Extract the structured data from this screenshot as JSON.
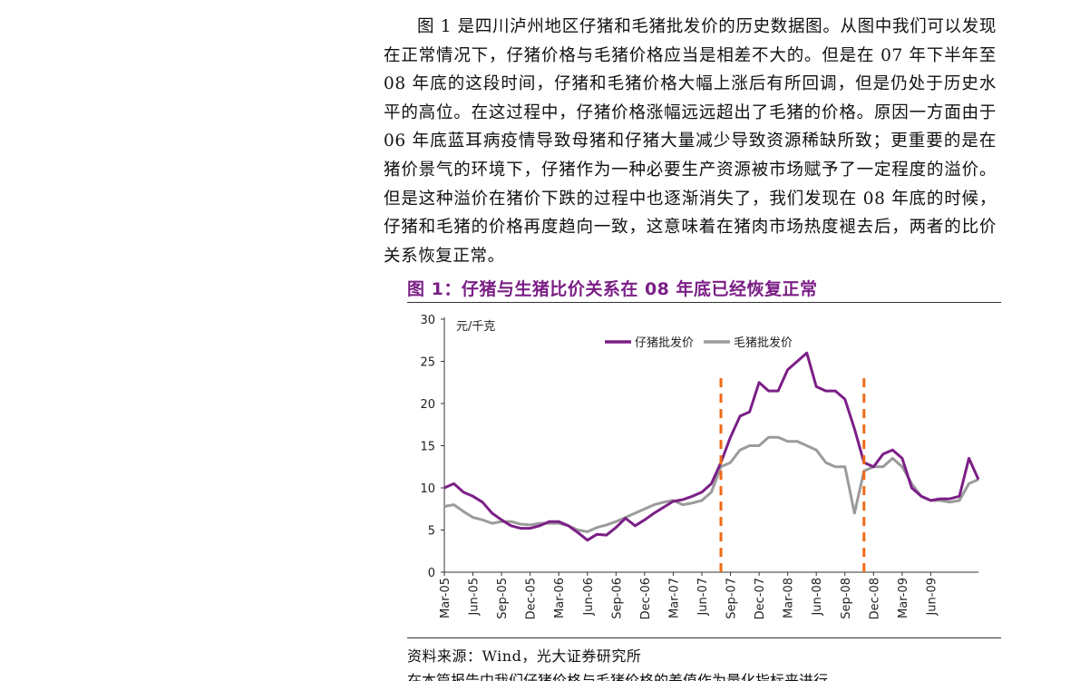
{
  "paragraph": "图 1 是四川泸州地区仔猪和毛猪批发价的历史数据图。从图中我们可以发现在正常情况下，仔猪价格与毛猪价格应当是相差不大的。但是在 07 年下半年至 08 年底的这段时间，仔猪和毛猪价格大幅上涨后有所回调，但是仍处于历史水平的高位。在这过程中，仔猪价格涨幅远远超出了毛猪的价格。原因一方面由于 06 年底蓝耳病疫情导致母猪和仔猪大量减少导致资源稀缺所致；更重要的是在猪价景气的环境下，仔猪作为一种必要生产资源被市场赋予了一定程度的溢价。但是这种溢价在猪价下跌的过程中也逐渐消失了，我们发现在 08 年底的时候，仔猪和毛猪的价格再度趋向一致，这意味着在猪肉市场热度褪去后，两者的比价关系恢复正常。",
  "figure_title": "图 1：仔猪与生猪比价关系在 08 年底已经恢复正常",
  "source": "资料来源：Wind，光大证券研究所",
  "bottom_partial": "在本篇报告中我们仔猪价格与毛猪价格的差值作为量化指标来进行",
  "colors": {
    "piglet": "#7b1f86",
    "hog": "#9b9b9b",
    "marker": "#ee6a16",
    "title": "#7b1f86"
  },
  "chart_data": {
    "type": "line",
    "unit_label": "元/千克",
    "ylim": [
      0,
      30
    ],
    "y_ticks": [
      "0",
      "5",
      "10",
      "15",
      "20",
      "25",
      "30"
    ],
    "x_range": [
      "2005-03",
      "2009-11"
    ],
    "x_ticks": [
      "Mar-05",
      "Jun-05",
      "Sep-05",
      "Dec-05",
      "Mar-06",
      "Jun-06",
      "Sep-06",
      "Dec-06",
      "Mar-07",
      "Jun-07",
      "Sep-07",
      "Dec-07",
      "Mar-08",
      "Jun-08",
      "Sep-08",
      "Dec-08",
      "Mar-09",
      "Jun-09"
    ],
    "legend_position": "top-right",
    "markers": [
      "2007-08",
      "2008-11"
    ],
    "series": [
      {
        "name": "仔猪批发价",
        "points": [
          [
            "2005-03",
            10.0
          ],
          [
            "2005-04",
            10.5
          ],
          [
            "2005-05",
            9.5
          ],
          [
            "2005-06",
            9.0
          ],
          [
            "2005-07",
            8.3
          ],
          [
            "2005-08",
            7.0
          ],
          [
            "2005-09",
            6.2
          ],
          [
            "2005-10",
            5.5
          ],
          [
            "2005-11",
            5.2
          ],
          [
            "2005-12",
            5.2
          ],
          [
            "2006-01",
            5.5
          ],
          [
            "2006-02",
            6.0
          ],
          [
            "2006-03",
            6.0
          ],
          [
            "2006-04",
            5.5
          ],
          [
            "2006-05",
            4.7
          ],
          [
            "2006-06",
            3.8
          ],
          [
            "2006-07",
            4.5
          ],
          [
            "2006-08",
            4.4
          ],
          [
            "2006-09",
            5.3
          ],
          [
            "2006-10",
            6.4
          ],
          [
            "2006-11",
            5.5
          ],
          [
            "2006-12",
            6.2
          ],
          [
            "2007-01",
            7.0
          ],
          [
            "2007-02",
            7.7
          ],
          [
            "2007-03",
            8.4
          ],
          [
            "2007-04",
            8.6
          ],
          [
            "2007-05",
            9.0
          ],
          [
            "2007-06",
            9.5
          ],
          [
            "2007-07",
            10.5
          ],
          [
            "2007-08",
            13.0
          ],
          [
            "2007-09",
            16.0
          ],
          [
            "2007-10",
            18.5
          ],
          [
            "2007-11",
            19.0
          ],
          [
            "2007-12",
            22.5
          ],
          [
            "2008-01",
            21.5
          ],
          [
            "2008-02",
            21.5
          ],
          [
            "2008-03",
            24.0
          ],
          [
            "2008-04",
            25.0
          ],
          [
            "2008-05",
            26.0
          ],
          [
            "2008-06",
            22.0
          ],
          [
            "2008-07",
            21.5
          ],
          [
            "2008-08",
            21.5
          ],
          [
            "2008-09",
            20.5
          ],
          [
            "2008-10",
            17.0
          ],
          [
            "2008-11",
            13.0
          ],
          [
            "2008-12",
            12.5
          ],
          [
            "2009-01",
            14.0
          ],
          [
            "2009-02",
            14.5
          ],
          [
            "2009-03",
            13.5
          ],
          [
            "2009-04",
            10.0
          ],
          [
            "2009-05",
            9.0
          ],
          [
            "2009-06",
            8.5
          ],
          [
            "2009-07",
            8.7
          ],
          [
            "2009-08",
            8.7
          ],
          [
            "2009-09",
            9.0
          ],
          [
            "2009-10",
            13.5
          ],
          [
            "2009-11",
            11.0
          ]
        ]
      },
      {
        "name": "毛猪批发价",
        "points": [
          [
            "2005-03",
            7.8
          ],
          [
            "2005-04",
            8.0
          ],
          [
            "2005-05",
            7.2
          ],
          [
            "2005-06",
            6.5
          ],
          [
            "2005-07",
            6.2
          ],
          [
            "2005-08",
            5.8
          ],
          [
            "2005-09",
            6.0
          ],
          [
            "2005-10",
            6.0
          ],
          [
            "2005-11",
            5.7
          ],
          [
            "2005-12",
            5.6
          ],
          [
            "2006-01",
            5.8
          ],
          [
            "2006-02",
            5.8
          ],
          [
            "2006-03",
            5.8
          ],
          [
            "2006-04",
            5.5
          ],
          [
            "2006-05",
            5.0
          ],
          [
            "2006-06",
            4.8
          ],
          [
            "2006-07",
            5.3
          ],
          [
            "2006-08",
            5.6
          ],
          [
            "2006-09",
            6.0
          ],
          [
            "2006-10",
            6.5
          ],
          [
            "2006-11",
            7.0
          ],
          [
            "2006-12",
            7.5
          ],
          [
            "2007-01",
            8.0
          ],
          [
            "2007-02",
            8.3
          ],
          [
            "2007-03",
            8.5
          ],
          [
            "2007-04",
            8.0
          ],
          [
            "2007-05",
            8.2
          ],
          [
            "2007-06",
            8.5
          ],
          [
            "2007-07",
            9.5
          ],
          [
            "2007-08",
            12.5
          ],
          [
            "2007-09",
            13.0
          ],
          [
            "2007-10",
            14.5
          ],
          [
            "2007-11",
            15.0
          ],
          [
            "2007-12",
            15.0
          ],
          [
            "2008-01",
            16.0
          ],
          [
            "2008-02",
            16.0
          ],
          [
            "2008-03",
            15.5
          ],
          [
            "2008-04",
            15.5
          ],
          [
            "2008-05",
            15.0
          ],
          [
            "2008-06",
            14.5
          ],
          [
            "2008-07",
            13.0
          ],
          [
            "2008-08",
            12.5
          ],
          [
            "2008-09",
            12.5
          ],
          [
            "2008-10",
            7.0
          ],
          [
            "2008-11",
            12.0
          ],
          [
            "2008-12",
            12.5
          ],
          [
            "2009-01",
            12.5
          ],
          [
            "2009-02",
            13.5
          ],
          [
            "2009-03",
            12.5
          ],
          [
            "2009-04",
            10.5
          ],
          [
            "2009-05",
            9.0
          ],
          [
            "2009-06",
            8.5
          ],
          [
            "2009-07",
            8.5
          ],
          [
            "2009-08",
            8.3
          ],
          [
            "2009-09",
            8.5
          ],
          [
            "2009-10",
            10.5
          ],
          [
            "2009-11",
            11.0
          ]
        ]
      }
    ]
  }
}
